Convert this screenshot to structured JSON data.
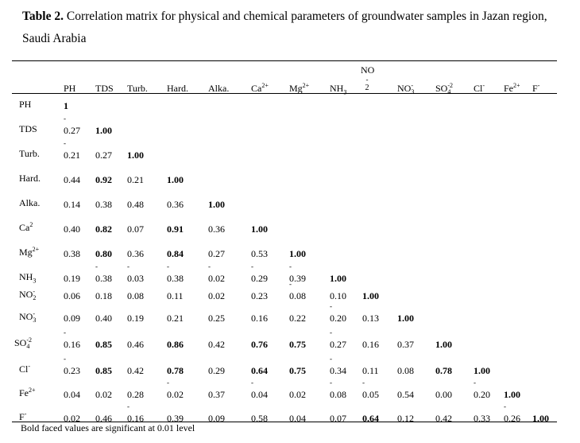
{
  "caption": {
    "label": "Table 2.",
    "text": "Correlation matrix for physical and chemical parameters of groundwater samples in Jazan region, Saudi Arabia"
  },
  "columns": [
    "PH",
    "TDS",
    "Turb.",
    "Hard.",
    "Alka.",
    "Ca2+",
    "Mg2+",
    "NH3",
    "NO2-",
    "NO3-",
    "SO4-2",
    "Cl-",
    "Fe2+",
    "F-"
  ],
  "rows": [
    {
      "label": "PH",
      "cells": [
        {
          "v": "1",
          "b": true
        }
      ]
    },
    {
      "label": "TDS",
      "cells": [
        {
          "v": "-0.27"
        },
        {
          "v": "1.00",
          "b": true
        }
      ]
    },
    {
      "label": "Turb.",
      "cells": [
        {
          "v": "-0.21"
        },
        {
          "v": "0.27"
        },
        {
          "v": "1.00",
          "b": true
        }
      ]
    },
    {
      "label": "Hard.",
      "cells": [
        {
          "v": "0.44"
        },
        {
          "v": "0.92",
          "b": true
        },
        {
          "v": "0.21"
        },
        {
          "v": "1.00",
          "b": true
        }
      ]
    },
    {
      "label": "Alka.",
      "cells": [
        {
          "v": "0.14"
        },
        {
          "v": "0.38"
        },
        {
          "v": "0.48"
        },
        {
          "v": "0.36"
        },
        {
          "v": "1.00",
          "b": true
        }
      ]
    },
    {
      "label": "Ca2",
      "cells": [
        {
          "v": "0.40"
        },
        {
          "v": "0.82",
          "b": true
        },
        {
          "v": "0.07"
        },
        {
          "v": "0.91",
          "b": true
        },
        {
          "v": "0.36"
        },
        {
          "v": "1.00",
          "b": true
        }
      ]
    },
    {
      "label": "Mg2+",
      "cells": [
        {
          "v": "0.38"
        },
        {
          "v": "0.80",
          "b": true
        },
        {
          "v": "0.36"
        },
        {
          "v": "0.84",
          "b": true
        },
        {
          "v": "0.27"
        },
        {
          "v": "0.53"
        },
        {
          "v": "1.00",
          "b": true
        }
      ]
    },
    {
      "label": "NH3",
      "cells": [
        {
          "v": "0.19"
        },
        {
          "v": "-0.38"
        },
        {
          "v": "-0.03"
        },
        {
          "v": "-0.38"
        },
        {
          "v": "-0.02"
        },
        {
          "v": "-0.29"
        },
        {
          "v": "-0.39"
        },
        {
          "v": "1.00",
          "b": true
        }
      ]
    },
    {
      "label": "NO2-",
      "cells": [
        {
          "v": "0.06"
        },
        {
          "v": "0.18"
        },
        {
          "v": "0.08"
        },
        {
          "v": "0.11"
        },
        {
          "v": "0.02"
        },
        {
          "v": "0.23"
        },
        {
          "v": "-0.08"
        },
        {
          "v": "0.10"
        },
        {
          "v": "1.00",
          "b": true
        }
      ]
    },
    {
      "label": "NO3-",
      "cells": [
        {
          "v": "0.09"
        },
        {
          "v": "0.40"
        },
        {
          "v": "0.19"
        },
        {
          "v": "0.21"
        },
        {
          "v": "0.25"
        },
        {
          "v": "0.16"
        },
        {
          "v": "0.22"
        },
        {
          "v": "-0.20"
        },
        {
          "v": "0.13"
        },
        {
          "v": "1.00",
          "b": true
        }
      ]
    },
    {
      "label": "SO4-2",
      "cells": [
        {
          "v": "-0.16"
        },
        {
          "v": "0.85",
          "b": true
        },
        {
          "v": "0.46"
        },
        {
          "v": "0.86",
          "b": true
        },
        {
          "v": "0.42"
        },
        {
          "v": "0.76",
          "b": true
        },
        {
          "v": "0.75",
          "b": true
        },
        {
          "v": "-0.27"
        },
        {
          "v": "0.16"
        },
        {
          "v": "0.37"
        },
        {
          "v": "1.00",
          "b": true
        }
      ]
    },
    {
      "label": "Cl-",
      "cells": [
        {
          "v": "-0.23"
        },
        {
          "v": "0.85",
          "b": true
        },
        {
          "v": "0.42"
        },
        {
          "v": "0.78",
          "b": true
        },
        {
          "v": "0.29"
        },
        {
          "v": "0.64",
          "b": true
        },
        {
          "v": "0.75",
          "b": true
        },
        {
          "v": "-0.34"
        },
        {
          "v": "0.11"
        },
        {
          "v": "0.08"
        },
        {
          "v": "0.78",
          "b": true
        },
        {
          "v": "1.00",
          "b": true
        }
      ]
    },
    {
      "label": "Fe2+",
      "cells": [
        {
          "v": "0.04"
        },
        {
          "v": "0.02"
        },
        {
          "v": "0.28"
        },
        {
          "v": "-0.02"
        },
        {
          "v": "0.37"
        },
        {
          "v": "-0.04"
        },
        {
          "v": "0.02"
        },
        {
          "v": "-0.08"
        },
        {
          "v": "-0.05"
        },
        {
          "v": "0.54"
        },
        {
          "v": "0.00"
        },
        {
          "v": "-0.20"
        },
        {
          "v": "1.00",
          "b": true
        }
      ]
    },
    {
      "label": "F-",
      "cells": [
        {
          "v": "0.02"
        },
        {
          "v": "0.46"
        },
        {
          "v": "-0.16"
        },
        {
          "v": "0.39"
        },
        {
          "v": "0.09"
        },
        {
          "v": "0.58"
        },
        {
          "v": "0.04"
        },
        {
          "v": "0.07"
        },
        {
          "v": "0.64",
          "b": true
        },
        {
          "v": "0.12"
        },
        {
          "v": "0.42"
        },
        {
          "v": "0.33"
        },
        {
          "v": "-0.26"
        },
        {
          "v": "1.00",
          "b": true
        }
      ]
    }
  ],
  "footnote": "Bold faced values are significant at 0.01 level"
}
